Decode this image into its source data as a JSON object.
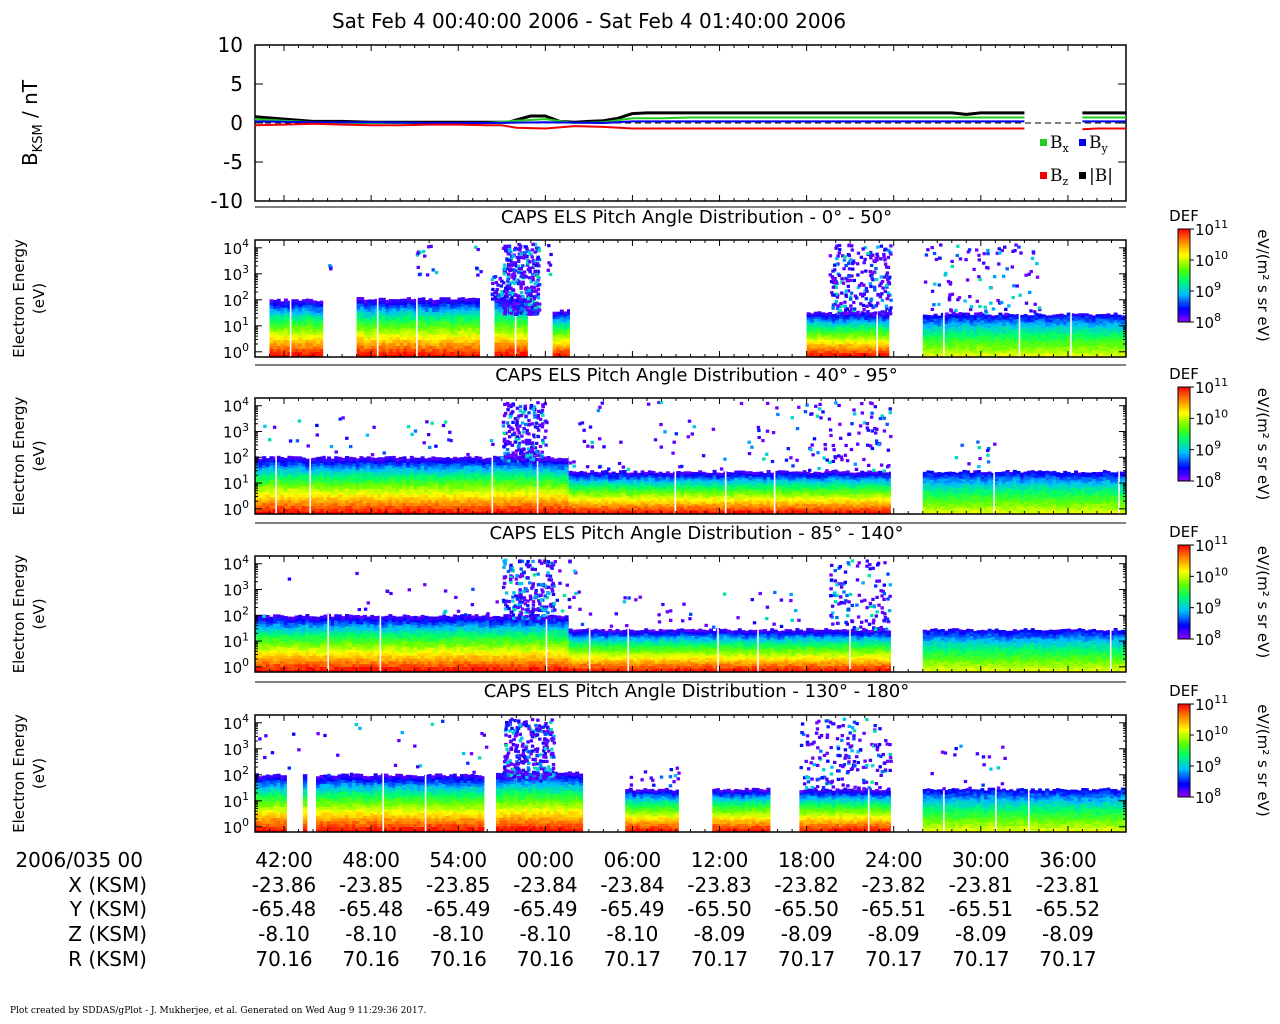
{
  "title": "Sat Feb 4 00:40:00 2006 - Sat Feb 4 01:40:00 2006",
  "footer": "Plot created by SDDAS/gPlot - J. Mukherjee, et al.  Generated on Wed Aug 9 11:29:36 2017.",
  "colors": {
    "bx": "#22cc22",
    "by": "#0000ee",
    "bz": "#ee0000",
    "bmag": "#000000",
    "colormap": [
      "#8b00ff",
      "#0000ff",
      "#00bfff",
      "#00ff66",
      "#66ff00",
      "#ffff00",
      "#ff8800",
      "#ff0000"
    ]
  },
  "chart_data": [
    {
      "type": "line",
      "ylabel_main": "B",
      "ylabel_sub": "KSM",
      "ylabel_unit": " / nT",
      "ylim": [
        -10,
        10
      ],
      "yticks": [
        "10",
        "5",
        "0",
        "-5",
        "-10"
      ],
      "xlim_minutes": [
        40,
        100
      ],
      "legend": [
        {
          "key": "bx",
          "main": "B",
          "sub": "x"
        },
        {
          "key": "by",
          "main": "B",
          "sub": "y"
        },
        {
          "key": "bz",
          "main": "B",
          "sub": "z"
        },
        {
          "key": "bmag",
          "main": "|B|",
          "sub": ""
        }
      ],
      "series": [
        {
          "key": "bmag",
          "x": [
            40,
            42,
            44,
            46,
            48,
            50,
            52,
            54,
            56,
            57.5,
            58,
            59,
            60,
            61,
            62,
            63,
            64,
            65,
            66,
            67,
            68,
            70,
            72,
            74,
            76,
            78,
            80,
            82,
            84,
            86,
            88,
            89,
            90,
            92,
            93,
            94,
            96,
            97,
            98,
            99,
            100
          ],
          "y": [
            0.8,
            0.5,
            0.2,
            0.2,
            0.1,
            0.1,
            0.1,
            0.1,
            0.1,
            0.1,
            0.4,
            0.9,
            0.9,
            0.2,
            0.1,
            0.2,
            0.3,
            0.6,
            1.2,
            1.3,
            1.3,
            1.3,
            1.3,
            1.3,
            1.3,
            1.3,
            1.3,
            1.3,
            1.3,
            1.3,
            1.3,
            1.1,
            1.3,
            1.3,
            1.3,
            null,
            null,
            1.3,
            1.3,
            1.3,
            1.3
          ]
        },
        {
          "key": "bx",
          "x": [
            40,
            42,
            44,
            46,
            48,
            50,
            52,
            54,
            56,
            58,
            60,
            62,
            64,
            66,
            68,
            70,
            72,
            74,
            76,
            78,
            80,
            82,
            84,
            86,
            88,
            90,
            92,
            93,
            94,
            96,
            97,
            98,
            100
          ],
          "y": [
            0.5,
            0.3,
            0.1,
            0.0,
            0.0,
            0.0,
            0.0,
            0.0,
            0.0,
            0.3,
            0.5,
            0.0,
            0.1,
            0.6,
            0.6,
            0.7,
            0.7,
            0.7,
            0.7,
            0.7,
            0.7,
            0.7,
            0.7,
            0.7,
            0.7,
            0.7,
            0.7,
            0.7,
            null,
            null,
            0.7,
            0.7,
            0.7
          ]
        },
        {
          "key": "by",
          "x": [
            40,
            44,
            48,
            52,
            56,
            60,
            64,
            66,
            70,
            74,
            78,
            82,
            86,
            90,
            93,
            94,
            96,
            97,
            100
          ],
          "y": [
            0.2,
            0.1,
            0.1,
            0.0,
            0.0,
            0.1,
            0.0,
            0.2,
            0.2,
            0.2,
            0.2,
            0.2,
            0.2,
            0.2,
            0.2,
            null,
            null,
            0.2,
            0.2
          ]
        },
        {
          "key": "bz",
          "x": [
            40,
            42,
            44,
            46,
            48,
            50,
            52,
            54,
            56,
            57,
            58,
            60,
            62,
            64,
            66,
            68,
            70,
            72,
            74,
            76,
            78,
            80,
            82,
            84,
            86,
            88,
            90,
            92,
            93,
            94,
            96,
            97,
            98,
            100
          ],
          "y": [
            -0.3,
            -0.2,
            -0.1,
            -0.2,
            -0.3,
            -0.3,
            -0.2,
            -0.2,
            -0.3,
            -0.3,
            -0.6,
            -0.7,
            -0.4,
            -0.5,
            -0.7,
            -0.7,
            -0.7,
            -0.7,
            -0.7,
            -0.7,
            -0.7,
            -0.7,
            -0.7,
            -0.7,
            -0.7,
            -0.7,
            -0.7,
            -0.7,
            -0.7,
            null,
            null,
            -0.8,
            -0.7,
            -0.7
          ]
        }
      ]
    },
    {
      "type": "heatmap",
      "title": "CAPS ELS Pitch Angle Distribution - 0° - 50°",
      "ylabel": [
        "Electron Energy",
        "(eV)"
      ],
      "yticks_exp": [
        "4",
        "3",
        "2",
        "1",
        "0"
      ],
      "colorbar": {
        "label": "DEF",
        "unit": "eV/(m² s sr eV)",
        "ticks_exp": [
          "11",
          "10",
          "9",
          "8"
        ]
      },
      "data_segments_min": [
        [
          41.0,
          45.0
        ],
        [
          47.0,
          56.0
        ],
        [
          56.5,
          58.8
        ],
        [
          60.5,
          61.7
        ],
        [
          78.0,
          83.8
        ],
        [
          86.0,
          100
        ]
      ],
      "bands": [
        {
          "x": [
            41,
            44.7
          ],
          "top": 2.0
        },
        {
          "x": [
            47,
            55.5
          ],
          "top": 2.05
        },
        {
          "x": [
            56.5,
            58.8
          ],
          "top": 2.1
        },
        {
          "x": [
            60.5,
            61.7
          ],
          "top": 1.6
        },
        {
          "x": [
            78,
            83.7
          ],
          "top": 1.5
        },
        {
          "x": [
            86,
            100
          ],
          "top": 1.45,
          "cool": true
        }
      ],
      "sparse": [
        {
          "x": [
            57,
            59.5
          ],
          "ymin": 1.5,
          "ymax": 4.2,
          "n": 340
        },
        {
          "x": [
            56.2,
            57.0
          ],
          "ymin": 2.0,
          "ymax": 3.0,
          "n": 25
        },
        {
          "x": [
            58.7,
            58.9
          ],
          "ymin": 2.0,
          "ymax": 2.6,
          "n": 14
        },
        {
          "x": [
            51,
            52.5
          ],
          "ymin": 3.0,
          "ymax": 4.2,
          "n": 14
        },
        {
          "x": [
            55,
            55.5
          ],
          "ymin": 3.0,
          "ymax": 4.2,
          "n": 6
        },
        {
          "x": [
            60,
            60.3
          ],
          "ymin": 3.0,
          "ymax": 4.2,
          "n": 6
        },
        {
          "x": [
            45,
            45.3
          ],
          "ymin": 3.2,
          "ymax": 3.5,
          "n": 3
        },
        {
          "x": [
            79.5,
            83.7
          ],
          "ymin": 1.5,
          "ymax": 4.2,
          "n": 230
        },
        {
          "x": [
            86,
            94
          ],
          "ymin": 1.5,
          "ymax": 4.2,
          "n": 110
        }
      ]
    },
    {
      "type": "heatmap",
      "title": "CAPS ELS Pitch Angle Distribution - 40° - 95°",
      "ylabel": [
        "Electron Energy",
        "(eV)"
      ],
      "yticks_exp": [
        "4",
        "3",
        "2",
        "1",
        "0"
      ],
      "colorbar": {
        "label": "DEF",
        "unit": "eV/(m² s sr eV)",
        "ticks_exp": [
          "11",
          "10",
          "9",
          "8"
        ]
      },
      "bands": [
        {
          "x": [
            40,
            61.6
          ],
          "top": 2.0
        },
        {
          "x": [
            61.6,
            83.8
          ],
          "top": 1.45
        },
        {
          "x": [
            86,
            100
          ],
          "top": 1.45,
          "cool": true
        }
      ],
      "sparse": [
        {
          "x": [
            57,
            60.0
          ],
          "ymin": 1.9,
          "ymax": 4.2,
          "n": 220
        },
        {
          "x": [
            40,
            48
          ],
          "ymin": 2.0,
          "ymax": 4.2,
          "n": 18
        },
        {
          "x": [
            48,
            57
          ],
          "ymin": 2.0,
          "ymax": 4.2,
          "n": 20
        },
        {
          "x": [
            61.6,
            78
          ],
          "ymin": 1.6,
          "ymax": 4.2,
          "n": 70
        },
        {
          "x": [
            78,
            83.7
          ],
          "ymin": 1.5,
          "ymax": 4.2,
          "n": 90
        },
        {
          "x": [
            88,
            92
          ],
          "ymin": 1.6,
          "ymax": 2.7,
          "n": 12
        }
      ]
    },
    {
      "type": "heatmap",
      "title": "CAPS ELS Pitch Angle Distribution - 85° - 140°",
      "ylabel": [
        "Electron Energy",
        "(eV)"
      ],
      "yticks_exp": [
        "4",
        "3",
        "2",
        "1",
        "0"
      ],
      "colorbar": {
        "label": "DEF",
        "unit": "eV/(m² s sr eV)",
        "ticks_exp": [
          "11",
          "10",
          "9",
          "8"
        ]
      },
      "bands": [
        {
          "x": [
            40,
            61.6
          ],
          "top": 2.0
        },
        {
          "x": [
            61.6,
            83.8
          ],
          "top": 1.45
        },
        {
          "x": [
            86,
            100
          ],
          "top": 1.45,
          "cool": true
        }
      ],
      "sparse": [
        {
          "x": [
            57,
            60.5
          ],
          "ymin": 1.9,
          "ymax": 4.2,
          "n": 220
        },
        {
          "x": [
            40,
            57
          ],
          "ymin": 2.0,
          "ymax": 3.7,
          "n": 22
        },
        {
          "x": [
            60.5,
            62.0
          ],
          "ymin": 2.0,
          "ymax": 4.2,
          "n": 18
        },
        {
          "x": [
            62,
            78
          ],
          "ymin": 1.6,
          "ymax": 3.0,
          "n": 40
        },
        {
          "x": [
            79.5,
            83.7
          ],
          "ymin": 1.5,
          "ymax": 4.2,
          "n": 120
        }
      ]
    },
    {
      "type": "heatmap",
      "title": "CAPS ELS Pitch Angle Distribution - 130° - 180°",
      "ylabel": [
        "Electron Energy",
        "(eV)"
      ],
      "yticks_exp": [
        "4",
        "3",
        "2",
        "1",
        "0"
      ],
      "colorbar": {
        "label": "DEF",
        "unit": "eV/(m² s sr eV)",
        "ticks_exp": [
          "11",
          "10",
          "9",
          "8"
        ]
      },
      "bands": [
        {
          "x": [
            40,
            42.2
          ],
          "top": 2.0
        },
        {
          "x": [
            43.3,
            43.6
          ],
          "top": 2.0
        },
        {
          "x": [
            44.2,
            55.8
          ],
          "top": 2.0
        },
        {
          "x": [
            56.6,
            62.6
          ],
          "top": 2.1
        },
        {
          "x": [
            65.5,
            69.2
          ],
          "top": 1.45
        },
        {
          "x": [
            71.5,
            75.5
          ],
          "top": 1.45
        },
        {
          "x": [
            77.5,
            83.8
          ],
          "top": 1.45
        },
        {
          "x": [
            86,
            100
          ],
          "top": 1.45,
          "cool": true
        }
      ],
      "sparse": [
        {
          "x": [
            57,
            60.5
          ],
          "ymin": 1.9,
          "ymax": 4.2,
          "n": 300
        },
        {
          "x": [
            40,
            56
          ],
          "ymin": 2.0,
          "ymax": 4.2,
          "n": 30
        },
        {
          "x": [
            65.5,
            69.2
          ],
          "ymin": 1.6,
          "ymax": 2.4,
          "n": 16
        },
        {
          "x": [
            77.5,
            83.7
          ],
          "ymin": 1.5,
          "ymax": 4.2,
          "n": 170
        },
        {
          "x": [
            86,
            92
          ],
          "ymin": 1.5,
          "ymax": 3.3,
          "n": 20
        }
      ]
    }
  ],
  "xaxis": {
    "row_header": "2006/035 00",
    "tick_minutes": [
      42,
      48,
      54,
      60,
      66,
      72,
      78,
      84,
      90,
      96
    ],
    "tick_labels": [
      "42:00",
      "48:00",
      "54:00",
      "00:00",
      "06:00",
      "12:00",
      "18:00",
      "24:00",
      "30:00",
      "36:00"
    ],
    "rows": [
      {
        "label": "X (KSM)",
        "values": [
          "-23.86",
          "-23.85",
          "-23.85",
          "-23.84",
          "-23.84",
          "-23.83",
          "-23.82",
          "-23.82",
          "-23.81",
          "-23.81"
        ]
      },
      {
        "label": "Y (KSM)",
        "values": [
          "-65.48",
          "-65.48",
          "-65.49",
          "-65.49",
          "-65.49",
          "-65.50",
          "-65.50",
          "-65.51",
          "-65.51",
          "-65.52"
        ]
      },
      {
        "label": "Z (KSM)",
        "values": [
          "-8.10",
          "-8.10",
          "-8.10",
          "-8.10",
          "-8.10",
          "-8.09",
          "-8.09",
          "-8.09",
          "-8.09",
          "-8.09"
        ]
      },
      {
        "label": "R (KSM)",
        "values": [
          "70.16",
          "70.16",
          "70.16",
          "70.16",
          "70.17",
          "70.17",
          "70.17",
          "70.17",
          "70.17",
          "70.17"
        ]
      }
    ]
  }
}
